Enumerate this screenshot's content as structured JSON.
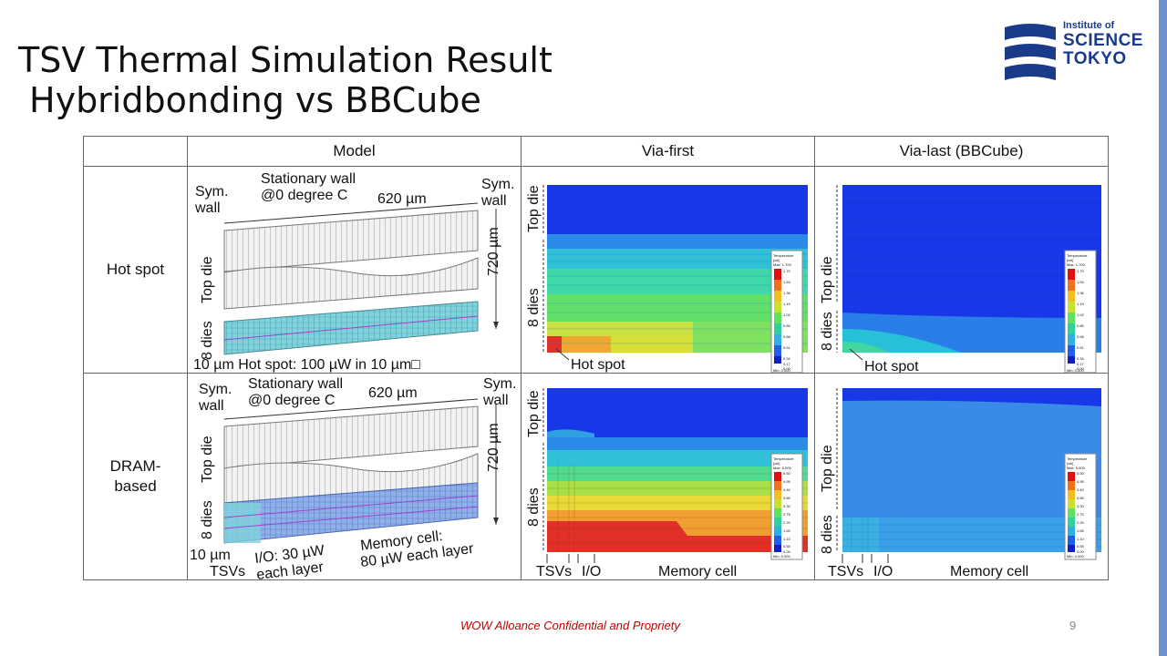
{
  "slide": {
    "title_line1": "TSV Thermal Simulation Result",
    "title_line2": "Hybridbonding vs BBCube",
    "footer": "WOW Alloance Confidential and Propriety",
    "page_number": "9"
  },
  "logo": {
    "line1": "Institute of",
    "line2": "SCIENCE",
    "line3": "TOKYO"
  },
  "table": {
    "headers": [
      "",
      "Model",
      "Via-first",
      "Via-last (BBCube)"
    ],
    "rows": [
      {
        "label": "Hot spot"
      },
      {
        "label_line1": "DRAM-",
        "label_line2": "based"
      }
    ]
  },
  "model_labels": {
    "sym_wall_1": "Sym.",
    "sym_wall_2": "wall",
    "stationary_1": "Stationary wall",
    "stationary_2": "@0 degree C",
    "width": "620 µm",
    "height": "720 µm",
    "top_die": "Top die",
    "eight_dies": "8 dies",
    "hotspot_note": "10 µm Hot spot: 100 µW in 10 µm□",
    "ten_um": "10 µm",
    "tsvs": "TSVs",
    "io_1": "I/O: 30 µW",
    "io_2": "each layer",
    "mem_1": "Memory cell:",
    "mem_2": "80 µW each layer"
  },
  "result_labels": {
    "top_die": "Top die",
    "eight_dies": "8 dies",
    "hot_spot": "Hot spot",
    "tsvs": "TSVs",
    "io": "I/O",
    "memory_cell": "Memory cell"
  },
  "legend_hot": {
    "title": "Temperature",
    "unit": "[cel]",
    "max": "Max: 1.700",
    "min": "Min: 0.000",
    "ticks": [
      "1.70",
      "1.53",
      "1.36",
      "1.19",
      "1.02",
      "0.85",
      "0.68",
      "0.51",
      "0.34",
      "0.17",
      "0.00"
    ]
  },
  "legend_dram": {
    "title": "Temperature",
    "unit": "[cel]",
    "max": "Max: 5.500",
    "min": "Min: 0.000",
    "ticks": [
      "5.50",
      "4.95",
      "4.40",
      "3.85",
      "3.30",
      "2.75",
      "2.20",
      "1.65",
      "1.10",
      "0.55",
      "0.00"
    ]
  },
  "colors": {
    "sim_blue_dark": "#1030e8",
    "sim_blue": "#2a7de8",
    "sim_cyan": "#25c8e0",
    "sim_green": "#5ee06a",
    "sim_yellow": "#d8e030",
    "sim_orange": "#f0a030",
    "sim_red": "#e03028",
    "logo_blue": "#1a3b8a"
  }
}
